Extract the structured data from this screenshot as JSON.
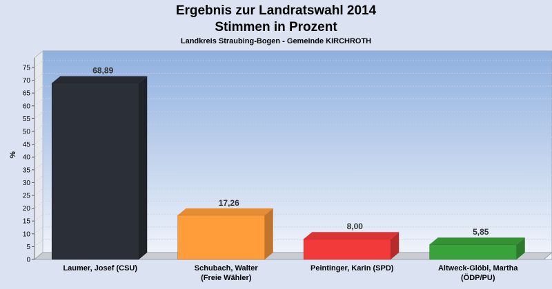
{
  "chart_data": {
    "type": "bar",
    "title": "Ergebnis zur Landratswahl 2014",
    "title_line2": "Stimmen in Prozent",
    "subtitle": "Landkreis Straubing-Bogen - Gemeinde KIRCHROTH",
    "ylabel": "%",
    "ylim": [
      0,
      75
    ],
    "ytick_step": 5,
    "yticks": [
      "0",
      "5",
      "10",
      "15",
      "20",
      "25",
      "30",
      "35",
      "40",
      "45",
      "50",
      "55",
      "60",
      "65",
      "70",
      "75"
    ],
    "categories": [
      [
        "Laumer, Josef (CSU)"
      ],
      [
        "Schubach, Walter",
        "(Freie Wähler)"
      ],
      [
        "Peintinger, Karin (SPD)"
      ],
      [
        "Altweck-Glöbl, Martha",
        "(ÖDP/PU)"
      ]
    ],
    "values": [
      68.89,
      17.26,
      8.0,
      5.85
    ],
    "data_labels": [
      "68,89",
      "17,26",
      "8,00",
      "5,85"
    ],
    "colors": [
      "#2b2f38",
      "#ff9d3a",
      "#f23a3a",
      "#3aa23a"
    ],
    "grid": true,
    "legend": "none"
  }
}
